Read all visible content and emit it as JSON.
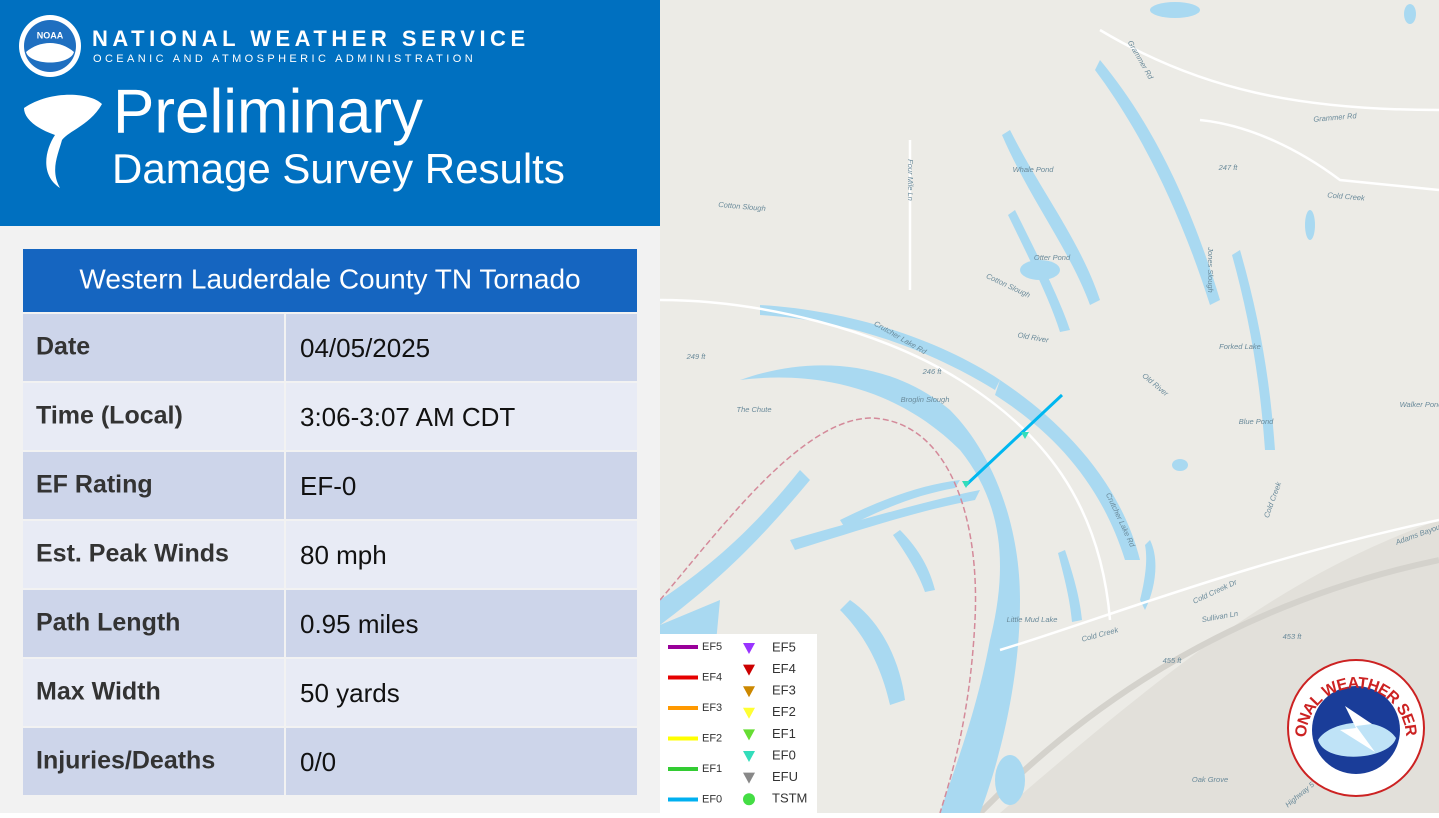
{
  "header": {
    "logo_text": "NOAA",
    "agency": "NATIONAL WEATHER SERVICE",
    "subagency": "OCEANIC AND ATMOSPHERIC ADMINISTRATION",
    "title": "Preliminary",
    "subtitle": "Damage Survey Results"
  },
  "table": {
    "title": "Western Lauderdale County TN Tornado",
    "rows": [
      [
        "Date",
        "04/05/2025"
      ],
      [
        "Time (Local)",
        "3:06-3:07 AM CDT"
      ],
      [
        "EF Rating",
        "EF-0"
      ],
      [
        "Est. Peak Winds",
        "80 mph"
      ],
      [
        "Path Length",
        "0.95 miles"
      ],
      [
        "Max Width",
        "50 yards"
      ],
      [
        "Injuries/Deaths",
        "0/0"
      ]
    ]
  },
  "legend": {
    "lines": [
      {
        "label": "EF5",
        "color": "#990099"
      },
      {
        "label": "EF4",
        "color": "#e60000"
      },
      {
        "label": "EF3",
        "color": "#ff9900"
      },
      {
        "label": "EF2",
        "color": "#ffff00"
      },
      {
        "label": "EF1",
        "color": "#33cc33"
      },
      {
        "label": "EF0",
        "color": "#00b0f0"
      }
    ],
    "markers": [
      {
        "label": "EF5",
        "color": "#9933ff"
      },
      {
        "label": "EF4",
        "color": "#cc0000"
      },
      {
        "label": "EF3",
        "color": "#cc8800"
      },
      {
        "label": "EF2",
        "color": "#ffff33"
      },
      {
        "label": "EF1",
        "color": "#66dd33"
      },
      {
        "label": "EF0",
        "color": "#33ddbb"
      },
      {
        "label": "EFU",
        "color": "#888888"
      },
      {
        "label": "TSTM",
        "color": "#44dd44"
      }
    ]
  },
  "map": {
    "labels": [
      "Grammer Rd",
      "Grammer Rd",
      "Whale Pond",
      "Otter Pond",
      "Cotton Slough",
      "Four Mile Ln",
      "Cotton Slough",
      "Crutcher Lake Rd",
      "Old River",
      "Old River",
      "246 ft",
      "249 ft",
      "The Chute",
      "Broglin Slough",
      "Forked Lake",
      "Blue Pond",
      "Walker Pond",
      "247 ft",
      "Cold Creek",
      "Jones Slough",
      "Crutcher Lake Rd",
      "Cold Creek",
      "Adams Bayou",
      "Cold Creek Dr",
      "Sullivan Ln",
      "Little Mud Lake",
      "Cold Creek",
      "455 ft",
      "453 ft",
      "Oak Grove",
      "Highway 5"
    ]
  },
  "badge": {
    "text": "NATIONAL WEATHER SERVICE"
  }
}
